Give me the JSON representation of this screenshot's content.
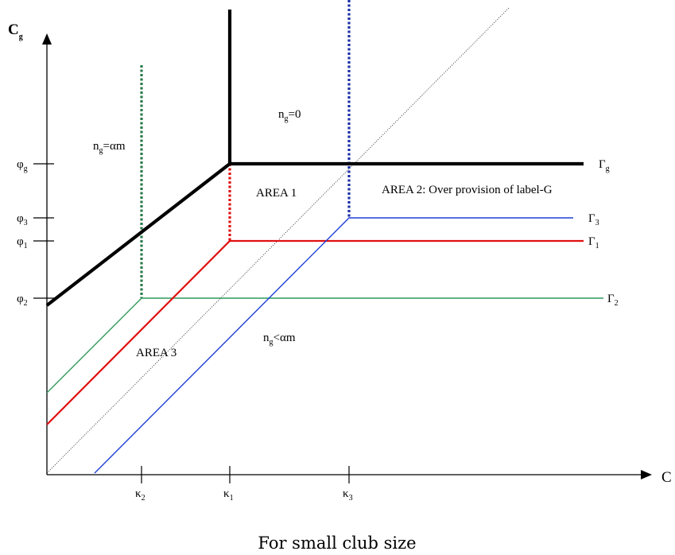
{
  "axes": {
    "y_label": {
      "main": "C",
      "sub": "g"
    },
    "x_label": "C"
  },
  "y_ticks": [
    {
      "sym": "φ",
      "sub": "g"
    },
    {
      "sym": "φ",
      "sub": "3"
    },
    {
      "sym": "φ",
      "sub": "1"
    },
    {
      "sym": "φ",
      "sub": "2"
    }
  ],
  "x_ticks": [
    {
      "sym": "κ",
      "sub": "2"
    },
    {
      "sym": "κ",
      "sub": "1"
    },
    {
      "sym": "κ",
      "sub": "3"
    }
  ],
  "curves": [
    {
      "sym": "Γ",
      "sub": "g",
      "color": "#000000"
    },
    {
      "sym": "Γ",
      "sub": "3",
      "color": "#1f3fd6"
    },
    {
      "sym": "Γ",
      "sub": "1",
      "color": "#e01010"
    },
    {
      "sym": "Γ",
      "sub": "2",
      "color": "#2e9a5a"
    }
  ],
  "regions": {
    "ng_zero": {
      "main": "n",
      "sub": "g",
      "rest": "=0"
    },
    "ng_alpha": {
      "main": "n",
      "sub": "g",
      "rest": "=αm"
    },
    "ng_less": {
      "main": "n",
      "sub": "g",
      "rest": "<αm"
    },
    "area1": "AREA 1",
    "area2": "AREA 2: Over provision of label-G",
    "area3": "AREA 3"
  },
  "caption": "For small club size",
  "colors": {
    "black": "#000000",
    "red": "#e01010",
    "blue": "#1f3fd6",
    "green": "#2e9a5a",
    "green_dotted": "#2a7a4a",
    "blue_dotted": "#1a2ea8"
  }
}
